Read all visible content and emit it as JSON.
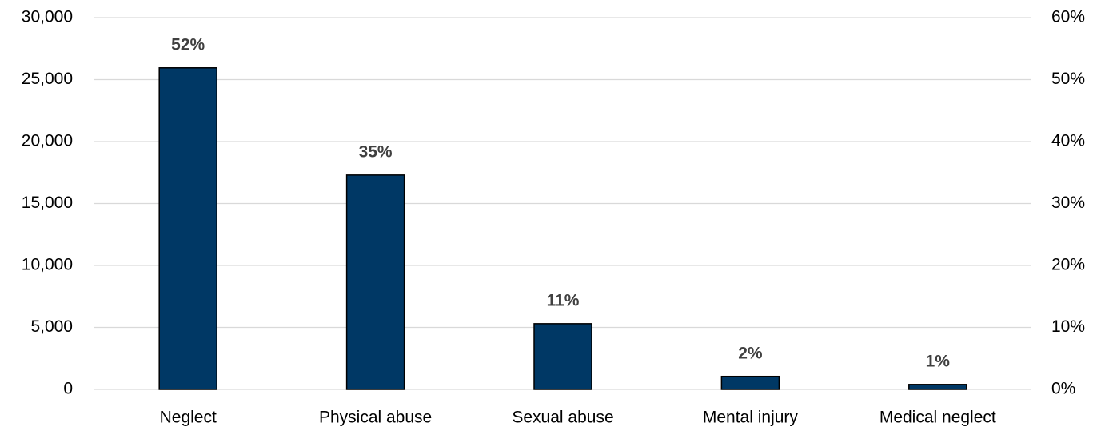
{
  "chart_data": {
    "type": "bar",
    "categories": [
      "Neglect",
      "Physical abuse",
      "Sexual abuse",
      "Mental injury",
      "Medical neglect"
    ],
    "series": [
      {
        "color": "#003865",
        "axis": "y2",
        "values": [
          51.9,
          34.6,
          10.6,
          2.1,
          0.8
        ],
        "value_labels": [
          "52%",
          "35%",
          "11%",
          "2%",
          "1%"
        ]
      }
    ],
    "ylim": [
      0,
      30000
    ],
    "yticks": [
      0,
      {
        "value": 5000,
        "label": "5,000"
      },
      {
        "value": 10000,
        "label": "10,000"
      },
      {
        "value": 15000,
        "label": "15,000"
      },
      {
        "value": 20000,
        "label": "20,000"
      },
      {
        "value": 25000,
        "label": "25,000"
      },
      {
        "value": 30000,
        "label": "30,000"
      }
    ],
    "y2lim": [
      0,
      60
    ],
    "y2ticks": [
      {
        "value": 0,
        "label": "0%"
      },
      {
        "value": 10,
        "label": "10%"
      },
      {
        "value": 20,
        "label": "20%"
      },
      {
        "value": 30,
        "label": "30%"
      },
      {
        "value": 40,
        "label": "40%"
      },
      {
        "value": 50,
        "label": "50%"
      },
      {
        "value": 60,
        "label": "60%"
      }
    ],
    "grid": true
  }
}
